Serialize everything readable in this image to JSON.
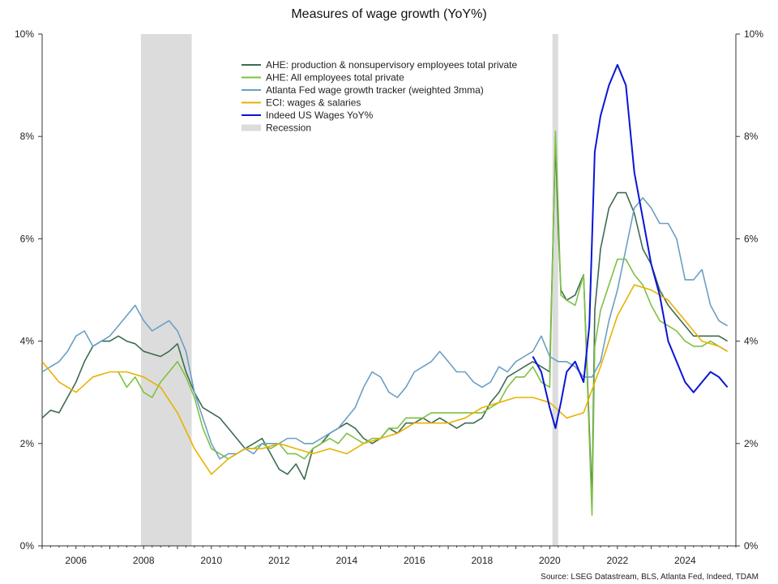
{
  "chart_data": {
    "type": "line",
    "title": "Measures of wage growth  (YoY%)",
    "source": "Source: LSEG Datastream, BLS, Atlanta Fed, Indeed, TDAM",
    "xlim": [
      2005.0,
      2025.5
    ],
    "ylim": [
      0,
      10
    ],
    "x_ticks": [
      2006,
      2008,
      2010,
      2012,
      2014,
      2016,
      2018,
      2020,
      2022,
      2024
    ],
    "x_tick_labels": [
      "2006",
      "2008",
      "2010",
      "2012",
      "2014",
      "2016",
      "2018",
      "2020",
      "2022",
      "2024"
    ],
    "y_ticks": [
      0,
      2,
      4,
      6,
      8,
      10
    ],
    "y_tick_labels": [
      "0%",
      "2%",
      "4%",
      "6%",
      "8%",
      "10%"
    ],
    "y_axis_both_sides": true,
    "grid": false,
    "legend_position": "top-center",
    "recessions": [
      {
        "label": "Recession",
        "start": 2007.92,
        "end": 2009.42
      },
      {
        "label": "Recession",
        "start": 2020.08,
        "end": 2020.25
      }
    ],
    "series": [
      {
        "name": "AHE: production & nonsupervisory employees total private",
        "color": "#3e6b4f",
        "x": [
          2005.0,
          2005.25,
          2005.5,
          2005.75,
          2006.0,
          2006.25,
          2006.5,
          2006.75,
          2007.0,
          2007.25,
          2007.5,
          2007.75,
          2008.0,
          2008.25,
          2008.5,
          2008.75,
          2009.0,
          2009.25,
          2009.5,
          2009.75,
          2010.0,
          2010.25,
          2010.5,
          2010.75,
          2011.0,
          2011.25,
          2011.5,
          2011.75,
          2012.0,
          2012.25,
          2012.5,
          2012.75,
          2013.0,
          2013.25,
          2013.5,
          2013.75,
          2014.0,
          2014.25,
          2014.5,
          2014.75,
          2015.0,
          2015.25,
          2015.5,
          2015.75,
          2016.0,
          2016.25,
          2016.5,
          2016.75,
          2017.0,
          2017.25,
          2017.5,
          2017.75,
          2018.0,
          2018.25,
          2018.5,
          2018.75,
          2019.0,
          2019.25,
          2019.5,
          2019.75,
          2020.0,
          2020.17,
          2020.25,
          2020.33,
          2020.5,
          2020.75,
          2021.0,
          2021.25,
          2021.33,
          2021.5,
          2021.75,
          2022.0,
          2022.25,
          2022.5,
          2022.75,
          2023.0,
          2023.25,
          2023.5,
          2023.75,
          2024.0,
          2024.25,
          2024.5,
          2024.75,
          2025.0,
          2025.25
        ],
        "values": [
          2.5,
          2.65,
          2.6,
          2.9,
          3.2,
          3.6,
          3.9,
          4.0,
          4.0,
          4.1,
          4.0,
          3.95,
          3.8,
          3.75,
          3.7,
          3.8,
          3.95,
          3.4,
          3.0,
          2.7,
          2.6,
          2.5,
          2.3,
          2.1,
          1.9,
          2.0,
          2.1,
          1.8,
          1.5,
          1.4,
          1.6,
          1.3,
          1.9,
          2.0,
          2.2,
          2.3,
          2.4,
          2.3,
          2.1,
          2.0,
          2.1,
          2.3,
          2.2,
          2.4,
          2.4,
          2.5,
          2.4,
          2.5,
          2.4,
          2.3,
          2.4,
          2.4,
          2.5,
          2.8,
          3.0,
          3.3,
          3.4,
          3.5,
          3.6,
          3.5,
          3.4,
          7.9,
          6.2,
          5.0,
          4.8,
          4.9,
          5.3,
          0.9,
          4.6,
          5.8,
          6.6,
          6.9,
          6.9,
          6.5,
          5.8,
          5.5,
          5.0,
          4.7,
          4.5,
          4.3,
          4.1,
          4.1,
          4.1,
          4.1,
          4.0
        ]
      },
      {
        "name": "AHE: All employees total private",
        "color": "#7dc142",
        "x": [
          2007.25,
          2007.5,
          2007.75,
          2008.0,
          2008.25,
          2008.5,
          2008.75,
          2009.0,
          2009.25,
          2009.5,
          2009.75,
          2010.0,
          2010.25,
          2010.5,
          2010.75,
          2011.0,
          2011.25,
          2011.5,
          2011.75,
          2012.0,
          2012.25,
          2012.5,
          2012.75,
          2013.0,
          2013.25,
          2013.5,
          2013.75,
          2014.0,
          2014.25,
          2014.5,
          2014.75,
          2015.0,
          2015.25,
          2015.5,
          2015.75,
          2016.0,
          2016.25,
          2016.5,
          2016.75,
          2017.0,
          2017.25,
          2017.5,
          2017.75,
          2018.0,
          2018.25,
          2018.5,
          2018.75,
          2019.0,
          2019.25,
          2019.5,
          2019.75,
          2020.0,
          2020.17,
          2020.25,
          2020.33,
          2020.5,
          2020.75,
          2021.0,
          2021.25,
          2021.33,
          2021.5,
          2021.75,
          2022.0,
          2022.25,
          2022.5,
          2022.75,
          2023.0,
          2023.25,
          2023.5,
          2023.75,
          2024.0,
          2024.25,
          2024.5,
          2024.75,
          2025.0,
          2025.25
        ],
        "values": [
          3.4,
          3.1,
          3.3,
          3.0,
          2.9,
          3.2,
          3.4,
          3.6,
          3.3,
          2.9,
          2.3,
          1.9,
          1.8,
          1.7,
          1.8,
          1.9,
          1.9,
          2.0,
          1.9,
          2.0,
          1.8,
          1.8,
          1.7,
          1.9,
          2.0,
          2.1,
          2.0,
          2.2,
          2.1,
          2.0,
          2.1,
          2.1,
          2.3,
          2.3,
          2.5,
          2.5,
          2.5,
          2.6,
          2.6,
          2.6,
          2.6,
          2.6,
          2.6,
          2.6,
          2.7,
          2.8,
          3.1,
          3.3,
          3.3,
          3.5,
          3.2,
          3.1,
          8.1,
          6.6,
          4.9,
          4.8,
          4.7,
          5.3,
          0.6,
          3.9,
          4.6,
          5.1,
          5.6,
          5.6,
          5.3,
          5.1,
          4.7,
          4.4,
          4.3,
          4.2,
          4.0,
          3.9,
          3.9,
          4.0,
          3.9,
          3.8
        ]
      },
      {
        "name": "Atlanta Fed wage growth tracker (weighted 3mma)",
        "color": "#6a9fc4",
        "x": [
          2005.0,
          2005.25,
          2005.5,
          2005.75,
          2006.0,
          2006.25,
          2006.5,
          2006.75,
          2007.0,
          2007.25,
          2007.5,
          2007.75,
          2008.0,
          2008.25,
          2008.5,
          2008.75,
          2009.0,
          2009.25,
          2009.5,
          2009.75,
          2010.0,
          2010.25,
          2010.5,
          2010.75,
          2011.0,
          2011.25,
          2011.5,
          2011.75,
          2012.0,
          2012.25,
          2012.5,
          2012.75,
          2013.0,
          2013.25,
          2013.5,
          2013.75,
          2014.0,
          2014.25,
          2014.5,
          2014.75,
          2015.0,
          2015.25,
          2015.5,
          2015.75,
          2016.0,
          2016.25,
          2016.5,
          2016.75,
          2017.0,
          2017.25,
          2017.5,
          2017.75,
          2018.0,
          2018.25,
          2018.5,
          2018.75,
          2019.0,
          2019.25,
          2019.5,
          2019.75,
          2020.0,
          2020.25,
          2020.5,
          2020.75,
          2021.0,
          2021.25,
          2021.5,
          2021.75,
          2022.0,
          2022.25,
          2022.5,
          2022.75,
          2023.0,
          2023.25,
          2023.5,
          2023.75,
          2024.0,
          2024.25,
          2024.5,
          2024.75,
          2025.0,
          2025.25
        ],
        "values": [
          3.4,
          3.5,
          3.6,
          3.8,
          4.1,
          4.2,
          3.9,
          4.0,
          4.1,
          4.3,
          4.5,
          4.7,
          4.4,
          4.2,
          4.3,
          4.4,
          4.2,
          3.8,
          3.0,
          2.5,
          2.0,
          1.7,
          1.8,
          1.8,
          1.9,
          1.8,
          2.0,
          2.0,
          2.0,
          2.1,
          2.1,
          2.0,
          2.0,
          2.1,
          2.2,
          2.3,
          2.5,
          2.7,
          3.1,
          3.4,
          3.3,
          3.0,
          2.9,
          3.1,
          3.4,
          3.5,
          3.6,
          3.8,
          3.6,
          3.4,
          3.4,
          3.2,
          3.1,
          3.2,
          3.5,
          3.4,
          3.6,
          3.7,
          3.8,
          4.1,
          3.7,
          3.6,
          3.6,
          3.5,
          3.3,
          3.3,
          3.6,
          4.4,
          5.0,
          5.8,
          6.6,
          6.8,
          6.6,
          6.3,
          6.3,
          6.0,
          5.2,
          5.2,
          5.4,
          4.7,
          4.4,
          4.3
        ]
      },
      {
        "name": "ECI: wages & salaries",
        "color": "#e8b200",
        "x": [
          2005.0,
          2005.5,
          2006.0,
          2006.5,
          2007.0,
          2007.5,
          2008.0,
          2008.5,
          2009.0,
          2009.5,
          2010.0,
          2010.5,
          2011.0,
          2011.5,
          2012.0,
          2012.5,
          2013.0,
          2013.5,
          2014.0,
          2014.5,
          2015.0,
          2015.5,
          2016.0,
          2016.5,
          2017.0,
          2017.5,
          2018.0,
          2018.5,
          2019.0,
          2019.5,
          2020.0,
          2020.5,
          2021.0,
          2021.5,
          2022.0,
          2022.5,
          2023.0,
          2023.5,
          2024.0,
          2024.5,
          2025.0,
          2025.25
        ],
        "values": [
          3.6,
          3.2,
          3.0,
          3.3,
          3.4,
          3.4,
          3.3,
          3.1,
          2.6,
          1.9,
          1.4,
          1.7,
          1.9,
          1.9,
          2.0,
          1.9,
          1.8,
          1.9,
          1.8,
          2.0,
          2.1,
          2.2,
          2.4,
          2.4,
          2.4,
          2.5,
          2.7,
          2.8,
          2.9,
          2.9,
          2.8,
          2.5,
          2.6,
          3.5,
          4.5,
          5.1,
          5.0,
          4.8,
          4.4,
          4.0,
          3.9,
          3.8
        ]
      },
      {
        "name": "Indeed US Wages YoY%",
        "color": "#0a14d6",
        "x": [
          2019.5,
          2019.75,
          2020.0,
          2020.17,
          2020.33,
          2020.5,
          2020.75,
          2021.0,
          2021.17,
          2021.33,
          2021.5,
          2021.75,
          2022.0,
          2022.25,
          2022.5,
          2022.75,
          2023.0,
          2023.25,
          2023.5,
          2023.75,
          2024.0,
          2024.25,
          2024.5,
          2024.75,
          2025.0,
          2025.25
        ],
        "values": [
          3.7,
          3.4,
          2.7,
          2.3,
          2.8,
          3.4,
          3.6,
          3.2,
          4.3,
          7.7,
          8.4,
          9.0,
          9.4,
          9.0,
          7.3,
          6.4,
          5.5,
          4.9,
          4.0,
          3.6,
          3.2,
          3.0,
          3.2,
          3.4,
          3.3,
          3.1
        ]
      }
    ]
  }
}
